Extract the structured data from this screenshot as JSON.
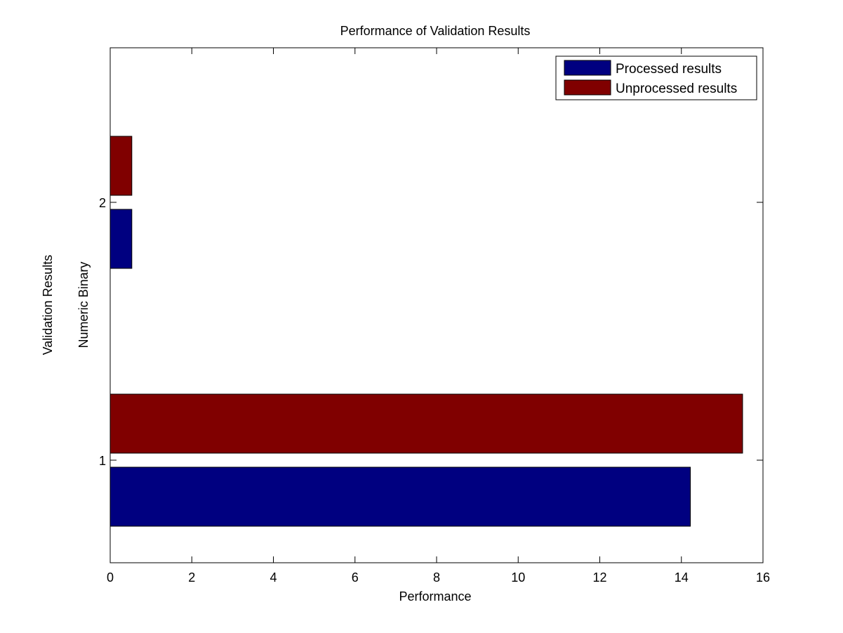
{
  "chart_data": {
    "type": "bar",
    "orientation": "horizontal",
    "title": "Performance of Validation Results",
    "xlabel": "Performance",
    "ylabel": "Validation Results",
    "ylabel_secondary": "Numeric Binary",
    "categories": [
      "1",
      "2"
    ],
    "series": [
      {
        "name": "Processed results",
        "values": [
          14.22,
          0.53
        ],
        "color": "#000080"
      },
      {
        "name": "Unprocessed results",
        "values": [
          15.5,
          0.53
        ],
        "color": "#800000"
      }
    ],
    "xlim": [
      0,
      16
    ],
    "xticks": [
      "0",
      "2",
      "4",
      "6",
      "8",
      "10",
      "12",
      "14",
      "16"
    ],
    "yticks": [
      "1",
      "2"
    ],
    "legend_placement": "top-right",
    "grid": false
  }
}
